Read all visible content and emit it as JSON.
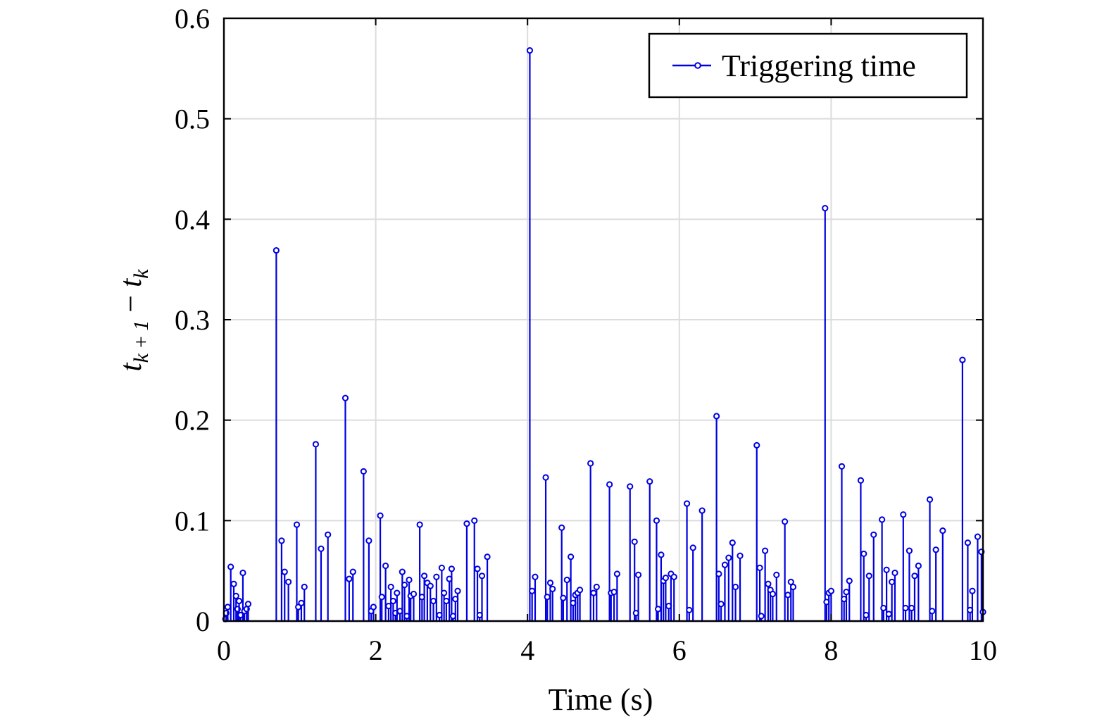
{
  "chart_data": {
    "type": "stem",
    "title": "",
    "xlabel": "Time (s)",
    "ylabel_parts": {
      "t1": "t",
      "sub1": "k + 1",
      "minus": " − ",
      "t2": "t",
      "sub2": "k"
    },
    "xlim": [
      0,
      10
    ],
    "ylim": [
      0,
      0.6
    ],
    "xticks": [
      0,
      2,
      4,
      6,
      8,
      10
    ],
    "yticks": [
      0,
      0.1,
      0.2,
      0.3,
      0.4,
      0.5,
      0.6
    ],
    "xtick_labels": [
      "0",
      "2",
      "4",
      "6",
      "8",
      "10"
    ],
    "ytick_labels": [
      "0",
      "0.1",
      "0.2",
      "0.3",
      "0.4",
      "0.5",
      "0.6"
    ],
    "grid": true,
    "legend": {
      "position": "top-right"
    },
    "color": "#0000e0",
    "series": [
      {
        "name": "Triggering time",
        "points": [
          [
            0.02,
            0.002
          ],
          [
            0.03,
            0.008
          ],
          [
            0.05,
            0.014
          ],
          [
            0.09,
            0.054
          ],
          [
            0.13,
            0.037
          ],
          [
            0.16,
            0.025
          ],
          [
            0.18,
            0.012
          ],
          [
            0.2,
            0.02
          ],
          [
            0.22,
            0.006
          ],
          [
            0.25,
            0.048
          ],
          [
            0.27,
            0.01
          ],
          [
            0.3,
            0.012
          ],
          [
            0.32,
            0.017
          ],
          [
            0.69,
            0.369
          ],
          [
            0.76,
            0.08
          ],
          [
            0.8,
            0.049
          ],
          [
            0.85,
            0.039
          ],
          [
            0.96,
            0.096
          ],
          [
            0.98,
            0.014
          ],
          [
            1.02,
            0.018
          ],
          [
            1.06,
            0.034
          ],
          [
            1.21,
            0.176
          ],
          [
            1.28,
            0.072
          ],
          [
            1.37,
            0.086
          ],
          [
            1.6,
            0.222
          ],
          [
            1.65,
            0.042
          ],
          [
            1.7,
            0.049
          ],
          [
            1.84,
            0.149
          ],
          [
            1.91,
            0.08
          ],
          [
            1.94,
            0.01
          ],
          [
            1.97,
            0.014
          ],
          [
            2.06,
            0.105
          ],
          [
            2.08,
            0.024
          ],
          [
            2.13,
            0.055
          ],
          [
            2.17,
            0.015
          ],
          [
            2.2,
            0.034
          ],
          [
            2.23,
            0.02
          ],
          [
            2.26,
            0.008
          ],
          [
            2.28,
            0.028
          ],
          [
            2.32,
            0.01
          ],
          [
            2.35,
            0.049
          ],
          [
            2.38,
            0.036
          ],
          [
            2.41,
            0.005
          ],
          [
            2.44,
            0.041
          ],
          [
            2.46,
            0.025
          ],
          [
            2.5,
            0.027
          ],
          [
            2.58,
            0.096
          ],
          [
            2.61,
            0.024
          ],
          [
            2.64,
            0.045
          ],
          [
            2.68,
            0.038
          ],
          [
            2.72,
            0.035
          ],
          [
            2.76,
            0.02
          ],
          [
            2.8,
            0.044
          ],
          [
            2.84,
            0.006
          ],
          [
            2.87,
            0.053
          ],
          [
            2.9,
            0.028
          ],
          [
            2.93,
            0.02
          ],
          [
            2.97,
            0.042
          ],
          [
            3.0,
            0.052
          ],
          [
            3.02,
            0.005
          ],
          [
            3.05,
            0.022
          ],
          [
            3.08,
            0.03
          ],
          [
            3.2,
            0.097
          ],
          [
            3.3,
            0.1
          ],
          [
            3.34,
            0.052
          ],
          [
            3.37,
            0.006
          ],
          [
            3.4,
            0.045
          ],
          [
            3.47,
            0.064
          ],
          [
            4.03,
            0.568
          ],
          [
            4.06,
            0.03
          ],
          [
            4.1,
            0.044
          ],
          [
            4.24,
            0.143
          ],
          [
            4.26,
            0.024
          ],
          [
            4.3,
            0.038
          ],
          [
            4.33,
            0.032
          ],
          [
            4.45,
            0.093
          ],
          [
            4.47,
            0.023
          ],
          [
            4.52,
            0.041
          ],
          [
            4.57,
            0.064
          ],
          [
            4.6,
            0.018
          ],
          [
            4.63,
            0.026
          ],
          [
            4.66,
            0.028
          ],
          [
            4.69,
            0.031
          ],
          [
            4.83,
            0.157
          ],
          [
            4.87,
            0.028
          ],
          [
            4.91,
            0.034
          ],
          [
            5.08,
            0.136
          ],
          [
            5.1,
            0.028
          ],
          [
            5.14,
            0.029
          ],
          [
            5.18,
            0.047
          ],
          [
            5.35,
            0.134
          ],
          [
            5.41,
            0.079
          ],
          [
            5.43,
            0.008
          ],
          [
            5.46,
            0.046
          ],
          [
            5.61,
            0.139
          ],
          [
            5.7,
            0.1
          ],
          [
            5.72,
            0.012
          ],
          [
            5.76,
            0.066
          ],
          [
            5.79,
            0.04
          ],
          [
            5.82,
            0.043
          ],
          [
            5.86,
            0.015
          ],
          [
            5.89,
            0.047
          ],
          [
            5.93,
            0.044
          ],
          [
            6.1,
            0.117
          ],
          [
            6.13,
            0.011
          ],
          [
            6.18,
            0.073
          ],
          [
            6.3,
            0.11
          ],
          [
            6.49,
            0.204
          ],
          [
            6.52,
            0.047
          ],
          [
            6.55,
            0.017
          ],
          [
            6.6,
            0.056
          ],
          [
            6.65,
            0.063
          ],
          [
            6.7,
            0.078
          ],
          [
            6.74,
            0.034
          ],
          [
            6.8,
            0.065
          ],
          [
            7.02,
            0.175
          ],
          [
            7.06,
            0.053
          ],
          [
            7.08,
            0.005
          ],
          [
            7.13,
            0.07
          ],
          [
            7.17,
            0.037
          ],
          [
            7.2,
            0.031
          ],
          [
            7.23,
            0.027
          ],
          [
            7.28,
            0.046
          ],
          [
            7.39,
            0.099
          ],
          [
            7.43,
            0.026
          ],
          [
            7.47,
            0.039
          ],
          [
            7.5,
            0.034
          ],
          [
            7.92,
            0.411
          ],
          [
            7.94,
            0.019
          ],
          [
            7.97,
            0.028
          ],
          [
            8.0,
            0.03
          ],
          [
            8.14,
            0.154
          ],
          [
            8.17,
            0.022
          ],
          [
            8.2,
            0.029
          ],
          [
            8.24,
            0.04
          ],
          [
            8.39,
            0.14
          ],
          [
            8.43,
            0.067
          ],
          [
            8.46,
            0.006
          ],
          [
            8.5,
            0.045
          ],
          [
            8.56,
            0.086
          ],
          [
            8.67,
            0.101
          ],
          [
            8.69,
            0.013
          ],
          [
            8.73,
            0.051
          ],
          [
            8.76,
            0.007
          ],
          [
            8.8,
            0.039
          ],
          [
            8.84,
            0.048
          ],
          [
            8.95,
            0.106
          ],
          [
            8.98,
            0.013
          ],
          [
            9.03,
            0.07
          ],
          [
            9.06,
            0.013
          ],
          [
            9.1,
            0.045
          ],
          [
            9.15,
            0.055
          ],
          [
            9.3,
            0.121
          ],
          [
            9.33,
            0.01
          ],
          [
            9.38,
            0.071
          ],
          [
            9.47,
            0.09
          ],
          [
            9.73,
            0.26
          ],
          [
            9.8,
            0.078
          ],
          [
            9.83,
            0.011
          ],
          [
            9.86,
            0.03
          ],
          [
            9.93,
            0.084
          ],
          [
            9.98,
            0.069
          ],
          [
            10.0,
            0.009
          ]
        ]
      }
    ]
  }
}
